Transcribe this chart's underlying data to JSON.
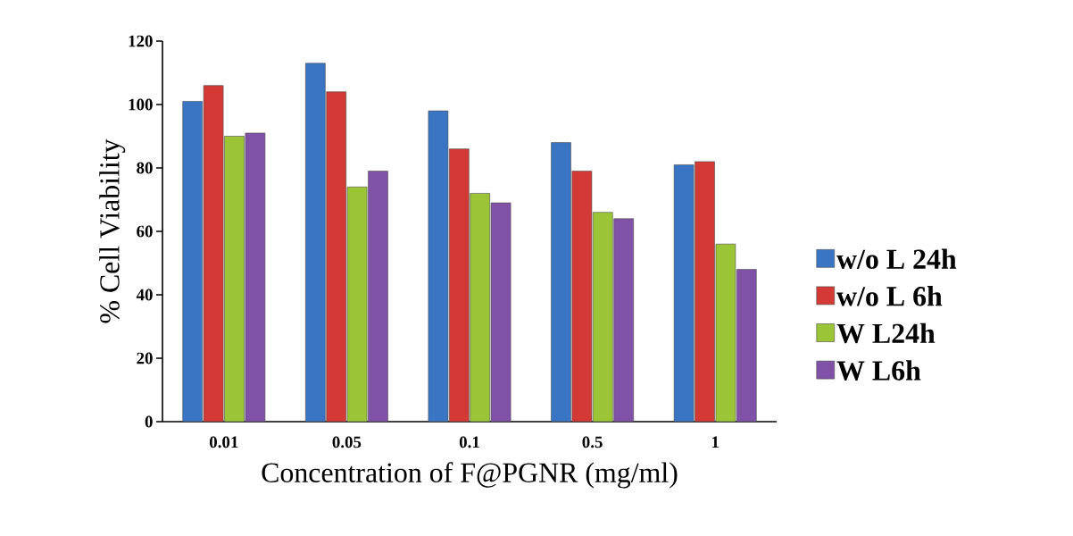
{
  "chart_data": {
    "type": "bar",
    "xlabel": "Concentration of F@PGNR (mg/ml)",
    "ylabel": "% Cell Viability",
    "categories": [
      "0.01",
      "0.05",
      "0.1",
      "0.5",
      "1"
    ],
    "series": [
      {
        "name": "w/o L 24h",
        "color": "#3a75c4",
        "values": [
          101,
          113,
          98,
          88,
          81
        ]
      },
      {
        "name": "w/o L 6h",
        "color": "#d43a35",
        "values": [
          106,
          104,
          86,
          79,
          82
        ]
      },
      {
        "name": "W L24h",
        "color": "#9bc536",
        "values": [
          90,
          74,
          72,
          66,
          56
        ]
      },
      {
        "name": "W L6h",
        "color": "#7f52a8",
        "values": [
          91,
          79,
          69,
          64,
          48
        ]
      }
    ],
    "ylim": [
      0,
      120
    ],
    "yticks": [
      0,
      20,
      40,
      60,
      80,
      100,
      120
    ],
    "legend": "right",
    "grid": false
  }
}
